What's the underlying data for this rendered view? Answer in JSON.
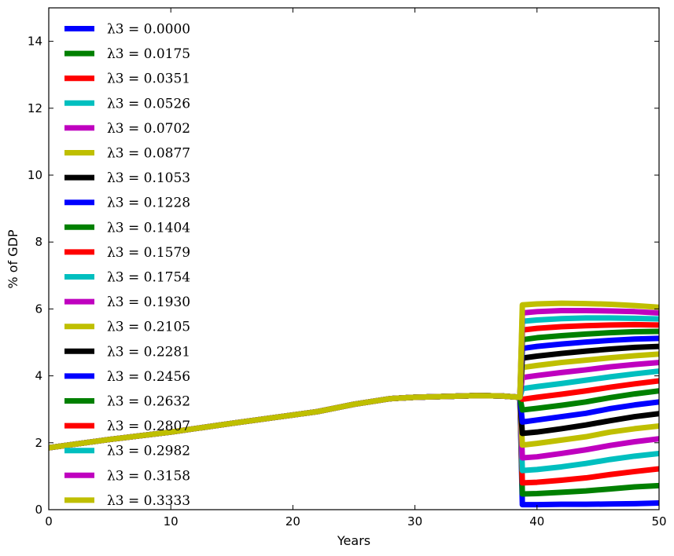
{
  "chart_data": {
    "type": "line",
    "title": "",
    "xlabel": "Years",
    "ylabel": "% of GDP",
    "xlim": [
      0,
      50
    ],
    "ylim": [
      0,
      15
    ],
    "xticks": [
      "0",
      "10",
      "20",
      "30",
      "40",
      "50"
    ],
    "yticks": [
      "0",
      "2",
      "4",
      "6",
      "8",
      "10",
      "12",
      "14"
    ],
    "grid": false,
    "legend_position": "top-left",
    "shared_path": {
      "x": [
        0,
        5,
        10,
        15,
        20,
        22,
        25,
        28,
        30,
        33,
        35,
        37,
        38.6
      ],
      "y": [
        1.85,
        2.1,
        2.32,
        2.58,
        2.83,
        2.93,
        3.15,
        3.32,
        3.36,
        3.39,
        3.41,
        3.4,
        3.36
      ]
    },
    "break_x": 38.8,
    "post_break_x": [
      38.8,
      40,
      42,
      44,
      46,
      48,
      50
    ],
    "series": [
      {
        "name": "λ3 = 0.0000",
        "color": "#0000ff",
        "post": [
          0.15,
          0.15,
          0.16,
          0.16,
          0.17,
          0.18,
          0.2
        ]
      },
      {
        "name": "λ3 = 0.0175",
        "color": "#008000",
        "post": [
          0.47,
          0.48,
          0.52,
          0.56,
          0.62,
          0.68,
          0.72
        ]
      },
      {
        "name": "λ3 = 0.0351",
        "color": "#ff0000",
        "post": [
          0.8,
          0.82,
          0.88,
          0.95,
          1.05,
          1.14,
          1.22
        ]
      },
      {
        "name": "λ3 = 0.0526",
        "color": "#00bfbf",
        "post": [
          1.17,
          1.2,
          1.28,
          1.38,
          1.5,
          1.6,
          1.68
        ]
      },
      {
        "name": "λ3 = 0.0702",
        "color": "#bf00bf",
        "post": [
          1.55,
          1.58,
          1.68,
          1.79,
          1.92,
          2.03,
          2.12
        ]
      },
      {
        "name": "λ3 = 0.0877",
        "color": "#bfbf00",
        "post": [
          1.93,
          1.98,
          2.08,
          2.18,
          2.32,
          2.42,
          2.5
        ]
      },
      {
        "name": "λ3 = 0.1053",
        "color": "#000000",
        "post": [
          2.28,
          2.32,
          2.42,
          2.53,
          2.66,
          2.78,
          2.87
        ]
      },
      {
        "name": "λ3 = 0.1228",
        "color": "#0000ff",
        "post": [
          2.62,
          2.68,
          2.78,
          2.88,
          3.02,
          3.13,
          3.22
        ]
      },
      {
        "name": "λ3 = 0.1404",
        "color": "#008000",
        "post": [
          2.98,
          3.03,
          3.12,
          3.22,
          3.35,
          3.46,
          3.55
        ]
      },
      {
        "name": "λ3 = 0.1579",
        "color": "#ff0000",
        "post": [
          3.3,
          3.36,
          3.45,
          3.55,
          3.66,
          3.76,
          3.85
        ]
      },
      {
        "name": "λ3 = 0.1754",
        "color": "#00bfbf",
        "post": [
          3.62,
          3.68,
          3.77,
          3.87,
          3.97,
          4.06,
          4.14
        ]
      },
      {
        "name": "λ3 = 0.1930",
        "color": "#bf00bf",
        "post": [
          3.95,
          4.01,
          4.1,
          4.18,
          4.27,
          4.34,
          4.4
        ]
      },
      {
        "name": "λ3 = 0.2105",
        "color": "#bfbf00",
        "post": [
          4.25,
          4.31,
          4.4,
          4.47,
          4.54,
          4.6,
          4.65
        ]
      },
      {
        "name": "λ3 = 0.2281",
        "color": "#000000",
        "post": [
          4.53,
          4.59,
          4.67,
          4.74,
          4.8,
          4.85,
          4.88
        ]
      },
      {
        "name": "λ3 = 0.2456",
        "color": "#0000ff",
        "post": [
          4.82,
          4.88,
          4.95,
          5.01,
          5.06,
          5.1,
          5.12
        ]
      },
      {
        "name": "λ3 = 0.2632",
        "color": "#008000",
        "post": [
          5.08,
          5.14,
          5.2,
          5.25,
          5.29,
          5.32,
          5.33
        ]
      },
      {
        "name": "λ3 = 0.2807",
        "color": "#ff0000",
        "post": [
          5.37,
          5.42,
          5.47,
          5.5,
          5.52,
          5.53,
          5.52
        ]
      },
      {
        "name": "λ3 = 0.2982",
        "color": "#00bfbf",
        "post": [
          5.63,
          5.67,
          5.71,
          5.73,
          5.73,
          5.72,
          5.7
        ]
      },
      {
        "name": "λ3 = 0.3158",
        "color": "#bf00bf",
        "post": [
          5.88,
          5.92,
          5.95,
          5.95,
          5.94,
          5.92,
          5.88
        ]
      },
      {
        "name": "λ3 = 0.3333",
        "color": "#bfbf00",
        "post": [
          6.12,
          6.15,
          6.17,
          6.16,
          6.14,
          6.1,
          6.05
        ]
      }
    ]
  }
}
